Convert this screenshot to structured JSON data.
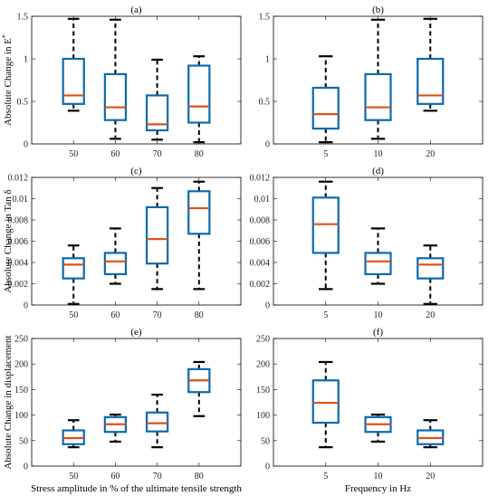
{
  "colors": {
    "box": "#0b6aad",
    "median": "#d95319",
    "whisker": "#000000"
  },
  "chart_data": [
    {
      "type": "box",
      "title": "(a)",
      "ylabel": "Absolute Change in E",
      "ylabel_sup": "*",
      "xlabel": "",
      "ylim": [
        0,
        1.5
      ],
      "yticks": [
        0,
        0.5,
        1,
        1.5
      ],
      "ytick_labels": [
        "0",
        "0.5",
        "1",
        "1.5"
      ],
      "categories": [
        "50",
        "60",
        "70",
        "80"
      ],
      "boxes": [
        {
          "min": 0.39,
          "q1": 0.47,
          "median": 0.57,
          "q3": 1.0,
          "max": 1.47
        },
        {
          "min": 0.06,
          "q1": 0.28,
          "median": 0.43,
          "q3": 0.82,
          "max": 1.46
        },
        {
          "min": 0.05,
          "q1": 0.16,
          "median": 0.23,
          "q3": 0.57,
          "max": 0.99
        },
        {
          "min": 0.02,
          "q1": 0.25,
          "median": 0.44,
          "q3": 0.92,
          "max": 1.03
        }
      ]
    },
    {
      "type": "box",
      "title": "(b)",
      "ylabel": "",
      "xlabel": "",
      "ylim": [
        0,
        1.5
      ],
      "yticks": [
        0,
        0.5,
        1,
        1.5
      ],
      "ytick_labels": [
        "0",
        "0.5",
        "1",
        "1.5"
      ],
      "categories": [
        "5",
        "10",
        "20"
      ],
      "boxes": [
        {
          "min": 0.02,
          "q1": 0.18,
          "median": 0.35,
          "q3": 0.66,
          "max": 1.03
        },
        {
          "min": 0.06,
          "q1": 0.28,
          "median": 0.43,
          "q3": 0.82,
          "max": 1.46
        },
        {
          "min": 0.39,
          "q1": 0.47,
          "median": 0.57,
          "q3": 1.0,
          "max": 1.47
        }
      ]
    },
    {
      "type": "box",
      "title": "(c)",
      "ylabel": "Absolute Change in Tan δ",
      "xlabel": "",
      "ylim": [
        0,
        0.012
      ],
      "yticks": [
        0,
        0.002,
        0.004,
        0.006,
        0.008,
        0.01,
        0.012
      ],
      "ytick_labels": [
        "0",
        "0.002",
        "0.004",
        "0.006",
        "0.008",
        "0.01",
        "0.012"
      ],
      "categories": [
        "50",
        "60",
        "70",
        "80"
      ],
      "boxes": [
        {
          "min": 0.0001,
          "q1": 0.0025,
          "median": 0.0038,
          "q3": 0.0044,
          "max": 0.0056
        },
        {
          "min": 0.002,
          "q1": 0.0029,
          "median": 0.0041,
          "q3": 0.0049,
          "max": 0.0072
        },
        {
          "min": 0.0015,
          "q1": 0.0039,
          "median": 0.0062,
          "q3": 0.0092,
          "max": 0.011
        },
        {
          "min": 0.0015,
          "q1": 0.0067,
          "median": 0.0091,
          "q3": 0.0107,
          "max": 0.0116
        }
      ]
    },
    {
      "type": "box",
      "title": "(d)",
      "ylabel": "",
      "xlabel": "",
      "ylim": [
        0,
        0.012
      ],
      "yticks": [
        0,
        0.002,
        0.004,
        0.006,
        0.008,
        0.01,
        0.012
      ],
      "ytick_labels": [
        "0",
        "0.002",
        "0.004",
        "0.006",
        "0.008",
        "0.01",
        "0.012"
      ],
      "categories": [
        "5",
        "10",
        "20"
      ],
      "boxes": [
        {
          "min": 0.0015,
          "q1": 0.0049,
          "median": 0.0076,
          "q3": 0.0101,
          "max": 0.0116
        },
        {
          "min": 0.002,
          "q1": 0.0029,
          "median": 0.0041,
          "q3": 0.0049,
          "max": 0.0072
        },
        {
          "min": 0.0001,
          "q1": 0.0025,
          "median": 0.0038,
          "q3": 0.0044,
          "max": 0.0056
        }
      ]
    },
    {
      "type": "box",
      "title": "(e)",
      "ylabel": "Absolute Change in displacement",
      "xlabel": "Stress amplitude in % of the ultimate tensile strength",
      "ylim": [
        0,
        250
      ],
      "yticks": [
        0,
        50,
        100,
        150,
        200,
        250
      ],
      "ytick_labels": [
        "0",
        "50",
        "100",
        "150",
        "200",
        "250"
      ],
      "categories": [
        "50",
        "60",
        "70",
        "80"
      ],
      "boxes": [
        {
          "min": 37,
          "q1": 43,
          "median": 55,
          "q3": 70,
          "max": 90
        },
        {
          "min": 48,
          "q1": 67,
          "median": 82,
          "q3": 96,
          "max": 101
        },
        {
          "min": 37,
          "q1": 68,
          "median": 84,
          "q3": 105,
          "max": 140
        },
        {
          "min": 98,
          "q1": 145,
          "median": 168,
          "q3": 190,
          "max": 204
        }
      ]
    },
    {
      "type": "box",
      "title": "(f)",
      "ylabel": "",
      "xlabel": "Frequency in Hz",
      "ylim": [
        0,
        250
      ],
      "yticks": [
        0,
        50,
        100,
        150,
        200,
        250
      ],
      "ytick_labels": [
        "0",
        "50",
        "100",
        "150",
        "200",
        "250"
      ],
      "categories": [
        "5",
        "10",
        "20"
      ],
      "boxes": [
        {
          "min": 37,
          "q1": 85,
          "median": 124,
          "q3": 168,
          "max": 204
        },
        {
          "min": 48,
          "q1": 67,
          "median": 82,
          "q3": 96,
          "max": 101
        },
        {
          "min": 37,
          "q1": 43,
          "median": 55,
          "q3": 70,
          "max": 90
        }
      ]
    }
  ]
}
